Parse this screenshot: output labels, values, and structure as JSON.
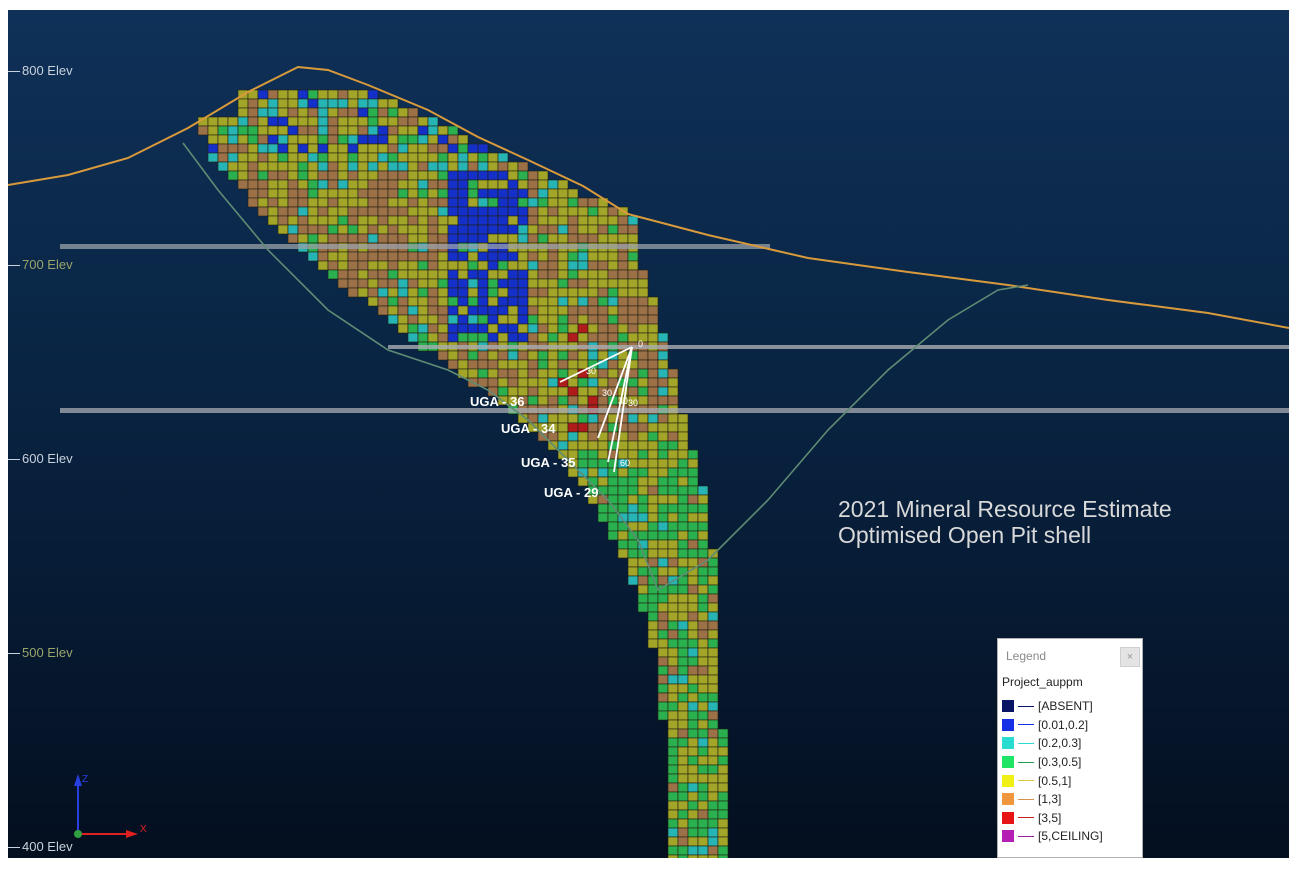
{
  "elevations": [
    {
      "id": "e800",
      "label": "800 Elev"
    },
    {
      "id": "e700",
      "label": "700 Elev"
    },
    {
      "id": "e600",
      "label": "600 Elev"
    },
    {
      "id": "e500",
      "label": "500 Elev"
    },
    {
      "id": "e400",
      "label": "400 Elev"
    }
  ],
  "drillholes": [
    "UGA - 36",
    "UGA - 34",
    "UGA - 35",
    "UGA - 29"
  ],
  "drill_depth_labels": [
    "0",
    "30",
    "30",
    "30",
    "30",
    "60"
  ],
  "annotation": {
    "line1": "2021 Mineral Resource Estimate",
    "line2": "Optimised Open Pit shell"
  },
  "legend": {
    "title": "Legend",
    "close": "×",
    "attribute": "Project_auppm",
    "items": [
      {
        "label": "[ABSENT]",
        "color": "#0a1464",
        "line": "#0a1464"
      },
      {
        "label": "[0.01,0.2]",
        "color": "#1430e6",
        "line": "#1430e6"
      },
      {
        "label": "[0.2,0.3]",
        "color": "#28dcd2",
        "line": "#28dcd2"
      },
      {
        "label": "[0.3,0.5]",
        "color": "#1ee664",
        "line": "#1ea050"
      },
      {
        "label": "[0.5,1]",
        "color": "#f0f014",
        "line": "#d8c840"
      },
      {
        "label": "[1,3]",
        "color": "#f0963c",
        "line": "#d89050"
      },
      {
        "label": "[3,5]",
        "color": "#e61414",
        "line": "#c02020"
      },
      {
        "label": "[5,CEILING]",
        "color": "#b41eb4",
        "line": "#a020a0"
      }
    ]
  },
  "axes": {
    "x": "X",
    "z": "Z"
  },
  "colors": {
    "olive": "#a3a529",
    "brown": "#9c7148",
    "green": "#2bb04f",
    "blue": "#1530c8",
    "cyan": "#26b4b4",
    "red": "#b01c1c",
    "topo": "#d99a3c",
    "pit": "#5f8c74"
  }
}
